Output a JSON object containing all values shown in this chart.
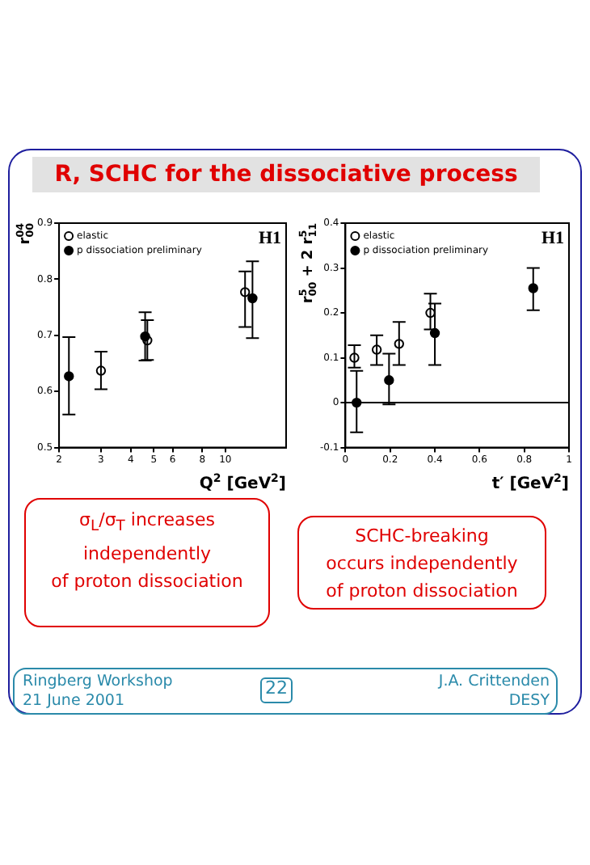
{
  "chart_data": [
    {
      "type": "other",
      "title": "R, SCHC for the dissociative process"
    },
    {
      "type": "scatter",
      "xlabel": "Q$^{2}$ [GeV$^{2}$]",
      "ylabel": "r$^{04}$$_{00}$",
      "log": "x",
      "xlim": [
        2,
        18
      ],
      "xticks": [
        2,
        3,
        4,
        5,
        6,
        8,
        10
      ],
      "ylim": [
        0.5,
        0.9
      ],
      "yticks": [
        0.5,
        0.6,
        0.7,
        0.8,
        0.9
      ],
      "grid": false,
      "legend": "top left",
      "marker": "circle",
      "annotations": [
        "H1"
      ],
      "series": [
        {
          "name": "elastic",
          "color": "#000000",
          "x": [
            3.0,
            4.7,
            12.1
          ],
          "values": [
            0.637,
            0.691,
            0.777
          ],
          "errors": [
            [
              0.604,
              0.671
            ],
            [
              0.656,
              0.727
            ],
            [
              0.715,
              0.814
            ]
          ]
        },
        {
          "name": "p dissociation preliminary",
          "color": "#000000",
          "x": [
            2.2,
            4.6,
            13.0
          ],
          "values": [
            0.627,
            0.698,
            0.766
          ],
          "errors": [
            [
              0.559,
              0.697
            ],
            [
              0.655,
              0.741
            ],
            [
              0.695,
              0.832
            ]
          ]
        }
      ]
    },
    {
      "type": "scatter",
      "xlabel": "t′ [GeV$^{2}$]",
      "ylabel": "r$^{5}$$_{00}$ + 2 r$^{5}$$_{11}$",
      "xlim": [
        0,
        1
      ],
      "xticks": [
        0,
        0.2,
        0.4,
        0.6,
        0.8,
        1
      ],
      "ylim": [
        -0.1,
        0.4
      ],
      "yticks": [
        -0.1,
        0,
        0.1,
        0.2,
        0.3,
        0.4
      ],
      "grid": false,
      "legend": "top left",
      "marker": "circle",
      "annotations": [
        "H1"
      ],
      "ref_lines": [
        {
          "axis": "y",
          "value": 0,
          "color": "#000000"
        }
      ],
      "series": [
        {
          "name": "elastic",
          "color": "#000000",
          "x": [
            0.04,
            0.14,
            0.24,
            0.38
          ],
          "values": [
            0.1,
            0.118,
            0.131,
            0.2
          ],
          "errors": [
            [
              0.078,
              0.128
            ],
            [
              0.084,
              0.15
            ],
            [
              0.084,
              0.18
            ],
            [
              0.163,
              0.243
            ]
          ]
        },
        {
          "name": "p dissociation preliminary",
          "color": "#000000",
          "x": [
            0.05,
            0.195,
            0.4,
            0.84
          ],
          "values": [
            0,
            0.05,
            0.155,
            0.255
          ],
          "errors": [
            [
              -0.066,
              0.071
            ],
            [
              -0.004,
              0.109
            ],
            [
              0.084,
              0.221
            ],
            [
              0.206,
              0.3
            ]
          ]
        }
      ]
    },
    {
      "type": "other",
      "annotations": [
        "σ$_{L}$/σ$_{T}$ increases\nindependently\nof proton dissociation",
        "SCHC-breaking\noccurs independently\nof proton dissociation",
        "Ringberg Workshop",
        "21 June 2001",
        "22",
        "J.A. Crittenden",
        "DESY"
      ]
    }
  ]
}
